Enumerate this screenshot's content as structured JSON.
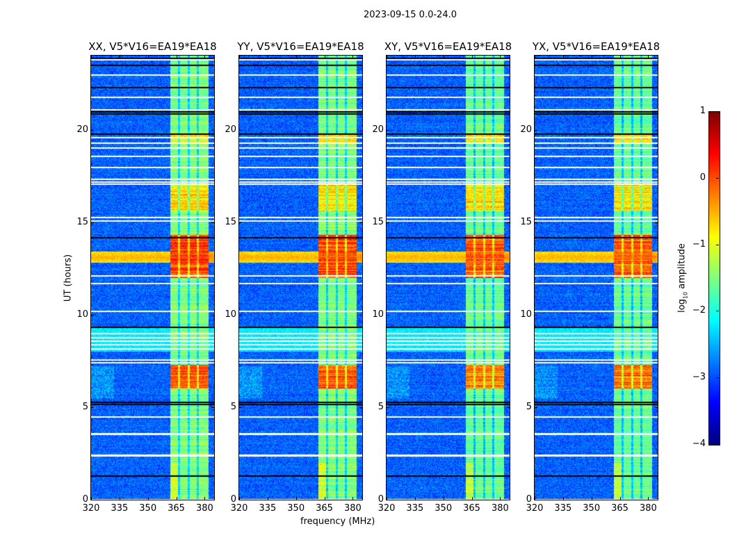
{
  "chart_data": {
    "type": "heatmap",
    "suptitle": "2023-09-15 0.0-24.0",
    "xlabel": "frequency (MHz)",
    "ylabel": "UT (hours)",
    "xlim": [
      320,
      385
    ],
    "ylim": [
      0,
      24
    ],
    "xticks": [
      "320",
      "335",
      "350",
      "365",
      "380"
    ],
    "xtick_values": [
      320,
      335,
      350,
      365,
      380
    ],
    "yticks": [
      "0",
      "5",
      "10",
      "15",
      "20"
    ],
    "ytick_values": [
      0,
      5,
      10,
      15,
      20
    ],
    "panels": [
      {
        "title": "XX, V5*V16=EA19*EA18",
        "seed": 11,
        "cross": false
      },
      {
        "title": "YY, V5*V16=EA19*EA18",
        "seed": 23,
        "cross": false
      },
      {
        "title": "XY, V5*V16=EA19*EA18",
        "seed": 37,
        "cross": true
      },
      {
        "title": "YX, V5*V16=EA19*EA18",
        "seed": 51,
        "cross": true
      }
    ],
    "colorbar": {
      "label_prefix": "log",
      "label_sub": "10",
      "label_suffix": " amplitude",
      "range": [
        -4,
        1
      ],
      "colormap": "jet",
      "ticks": [
        "−4",
        "−3",
        "−2",
        "−1",
        "0",
        "1"
      ],
      "tick_values": [
        -4,
        -3,
        -2,
        -1,
        0,
        1
      ]
    },
    "features": {
      "background_log_amp": -2.9,
      "active_band_mhz": [
        362,
        382
      ],
      "band_gaps_mhz": [
        366.5,
        371.5,
        376.5
      ],
      "band_log_amp": -1.5,
      "bright_band_intervals_ut": [
        [
          6.0,
          7.3,
          -0.1
        ],
        [
          12.0,
          14.3,
          0.0
        ],
        [
          15.6,
          17.0,
          -0.7
        ],
        [
          19.3,
          19.7,
          -0.8
        ]
      ],
      "broadband_rfi_ut": [
        [
          12.8,
          13.4,
          -0.3
        ]
      ],
      "flagged_rows_ut": [
        0.05,
        2.4,
        2.45,
        3.55,
        3.62,
        4.5,
        7.45,
        7.6,
        8.2,
        8.4,
        8.6,
        8.8,
        9.0,
        10.2,
        11.7,
        12.15,
        15.1,
        15.3,
        17.1,
        17.2,
        17.35,
        18.0,
        18.6,
        19.05,
        19.3,
        19.6,
        21.1,
        21.8,
        23.0,
        23.8
      ],
      "dark_rows_ut": [
        1.3,
        5.2,
        5.3,
        9.35,
        14.2,
        19.8,
        20.9,
        21.0,
        22.3,
        23.5,
        23.9
      ]
    }
  }
}
